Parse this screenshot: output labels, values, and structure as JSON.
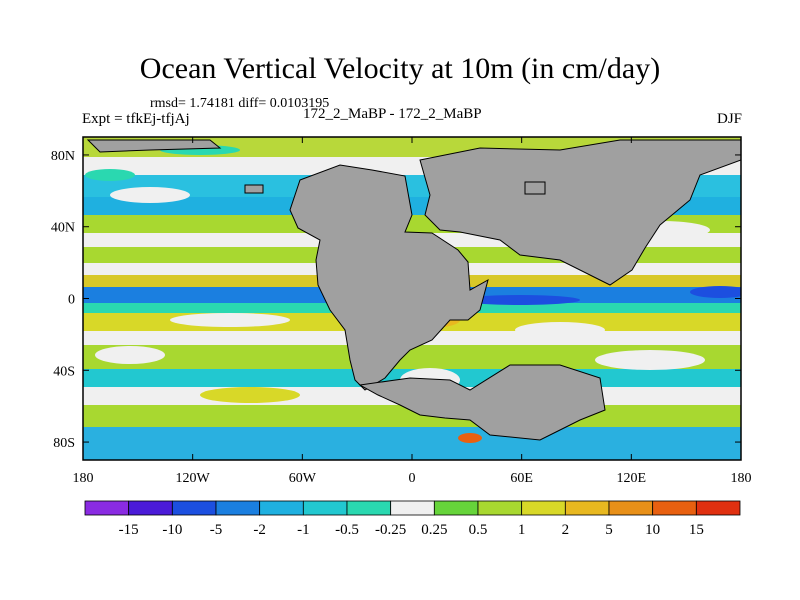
{
  "title": "Ocean Vertical Velocity at 10m (in cm/day)",
  "stats": "rmsd= 1.74181 diff= 0.0103195",
  "experiment": "Expt = tfkEj-tfjAj",
  "subtitle": "172_2_MaBP - 172_2_MaBP",
  "season": "DJF",
  "map": {
    "projection": "cylindrical equidistant",
    "lon_range": [
      -180,
      180
    ],
    "lat_range": [
      -90,
      90
    ],
    "land_color": "#a0a0a0",
    "x_ticks": [
      {
        "value": -180,
        "label": "180"
      },
      {
        "value": -120,
        "label": "120W"
      },
      {
        "value": -60,
        "label": "60W"
      },
      {
        "value": 0,
        "label": "0"
      },
      {
        "value": 60,
        "label": "60E"
      },
      {
        "value": 120,
        "label": "120E"
      },
      {
        "value": 180,
        "label": "180"
      }
    ],
    "y_ticks": [
      {
        "value": 80,
        "label": "80N"
      },
      {
        "value": 40,
        "label": "40N"
      },
      {
        "value": 0,
        "label": "0"
      },
      {
        "value": -40,
        "label": "40S"
      },
      {
        "value": -80,
        "label": "80S"
      }
    ]
  },
  "colorbar": {
    "colors": [
      "#8a2be2",
      "#4b1bd8",
      "#1c4fe0",
      "#1b7fe0",
      "#1fb0e0",
      "#22c8d0",
      "#2ad8b0",
      "#f0f0f0",
      "#66d43a",
      "#a8d830",
      "#d8d828",
      "#e8b820",
      "#e89018",
      "#e86010",
      "#e03010"
    ],
    "labels": [
      "-15",
      "-10",
      "-5",
      "-2",
      "-1",
      "-0.5",
      "-0.25",
      "0.25",
      "0.5",
      "1",
      "2",
      "5",
      "10",
      "15"
    ]
  }
}
